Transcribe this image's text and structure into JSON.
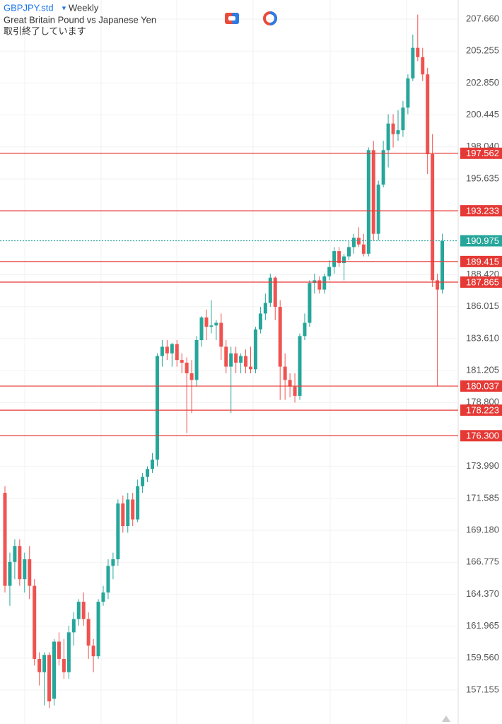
{
  "header": {
    "symbol": "GBPJPY.std",
    "timeframe": "Weekly",
    "description": "Great Britain Pound vs Japanese Yen",
    "status": "取引終了しています"
  },
  "chart_data": {
    "type": "candlestick",
    "up_color": "#26a69a",
    "down_color": "#ef5350",
    "grid": true,
    "ylim": [
      154.6,
      209.1
    ],
    "yticks": [
      {
        "value": 207.66,
        "label": "207.660"
      },
      {
        "value": 205.255,
        "label": "205.255"
      },
      {
        "value": 202.85,
        "label": "202.850"
      },
      {
        "value": 200.445,
        "label": "200.445"
      },
      {
        "value": 198.04,
        "label": "198.040"
      },
      {
        "value": 195.635,
        "label": "195.635"
      },
      {
        "value": 188.42,
        "label": "188.420"
      },
      {
        "value": 186.015,
        "label": "186.015"
      },
      {
        "value": 183.61,
        "label": "183.610"
      },
      {
        "value": 181.205,
        "label": "181.205"
      },
      {
        "value": 178.8,
        "label": "178.800"
      },
      {
        "value": 173.99,
        "label": "173.990"
      },
      {
        "value": 171.585,
        "label": "171.585"
      },
      {
        "value": 169.18,
        "label": "169.180"
      },
      {
        "value": 166.775,
        "label": "166.775"
      },
      {
        "value": 164.37,
        "label": "164.370"
      },
      {
        "value": 161.965,
        "label": "161.965"
      },
      {
        "value": 159.56,
        "label": "159.560"
      },
      {
        "value": 157.155,
        "label": "157.155"
      }
    ],
    "levels": {
      "color": "#e53935",
      "items": [
        {
          "value": 197.562,
          "label": "197.562"
        },
        {
          "value": 193.233,
          "label": "193.233"
        },
        {
          "value": 189.415,
          "label": "189.415"
        },
        {
          "value": 187.865,
          "label": "187.865"
        },
        {
          "value": 180.037,
          "label": "180.037"
        },
        {
          "value": 178.223,
          "label": "178.223"
        },
        {
          "value": 176.3,
          "label": "176.300"
        }
      ]
    },
    "current_price": {
      "value": 190.975,
      "label": "190.975",
      "color": "#26a69a"
    },
    "open": [
      172,
      165,
      166.8,
      168,
      165.5,
      167,
      165,
      159.5,
      158.5,
      159.8,
      156.5,
      160.8,
      159.5,
      158.5,
      161.5,
      162.5,
      163.8,
      162.5,
      160.5,
      159.7,
      163.8,
      164.5,
      166.5,
      167,
      171.2,
      169.5,
      171.5,
      170,
      172.5,
      173.2,
      173.8,
      174.5,
      182.3,
      183,
      182.5,
      183.2,
      182,
      181.8,
      181,
      180.5,
      183.5,
      185.2,
      184.5,
      184.6,
      184.8,
      183,
      181.5,
      182.5,
      181.8,
      182.3,
      181.5,
      181.3,
      184.3,
      185.5,
      186.3,
      188.2,
      186,
      181.5,
      180.5,
      180,
      179.3,
      183.8,
      184.8,
      187.8,
      188,
      187.3,
      188.3,
      189,
      190.2,
      189.3,
      189.8,
      190.5,
      191.2,
      190.7,
      190,
      197.8,
      191.5,
      195.2,
      197.8,
      199.8,
      199,
      199.3,
      201,
      203.2,
      205.5,
      204.8,
      203.5,
      197.5,
      188,
      187.3
    ],
    "high": [
      172.5,
      167.5,
      168.5,
      168.5,
      167.5,
      168,
      165.5,
      160,
      160,
      160,
      161,
      161.5,
      161,
      162,
      163,
      164,
      164.5,
      163,
      161,
      164,
      165,
      167,
      167.5,
      171.5,
      171.8,
      172,
      172,
      173,
      173.5,
      174,
      175,
      182.5,
      183.5,
      183.5,
      183.3,
      183.5,
      182.5,
      182.2,
      182,
      183.8,
      185.3,
      185.8,
      186.5,
      185,
      185.5,
      183.5,
      183,
      183,
      182.5,
      182.8,
      183,
      184.5,
      186,
      187,
      188.5,
      188.3,
      186.5,
      182.5,
      181,
      181,
      184,
      185.5,
      188,
      188.5,
      188.3,
      188.5,
      189.5,
      190.5,
      190.5,
      190,
      191,
      191.5,
      192,
      191.5,
      198,
      198.5,
      195.5,
      198.5,
      200.5,
      200.5,
      200.8,
      201.5,
      203.5,
      206.5,
      208,
      205.5,
      204,
      199,
      188.5,
      191.5
    ],
    "low": [
      164.5,
      163.5,
      165.5,
      165,
      164.5,
      164,
      159,
      157.5,
      156,
      155.8,
      156,
      159,
      158,
      158,
      160.5,
      162,
      162,
      159.5,
      158.5,
      159.5,
      163.5,
      164,
      165.5,
      166.5,
      169,
      169,
      169.5,
      169.8,
      172,
      172.8,
      173.5,
      174,
      181.5,
      182,
      181.5,
      181.5,
      181,
      176.5,
      178,
      180,
      183,
      183.5,
      184,
      183.5,
      182,
      181,
      178,
      181,
      181,
      181,
      181,
      181,
      184,
      185,
      186,
      185,
      179,
      179,
      179.2,
      178.8,
      179,
      183.5,
      184.5,
      187,
      187,
      187,
      188,
      188.5,
      189,
      188,
      189.5,
      190,
      190.5,
      189.8,
      189.8,
      191,
      191,
      195,
      196.5,
      198,
      198.5,
      198.8,
      200.5,
      203,
      204.5,
      203,
      196,
      187.5,
      180,
      187
    ],
    "close": [
      165,
      166.8,
      168,
      165.5,
      167,
      165,
      159.5,
      158.5,
      159.8,
      156.3,
      160.8,
      159.5,
      158.5,
      161.5,
      162.5,
      163.8,
      162.5,
      160.5,
      159.7,
      163.8,
      164.5,
      166.5,
      167,
      171.2,
      169.5,
      171.5,
      170,
      172.5,
      173.2,
      173.8,
      174.5,
      182.3,
      183,
      182.5,
      183.2,
      182,
      181.8,
      181,
      180.5,
      183.5,
      185.2,
      184.5,
      184.6,
      184.8,
      183,
      181.5,
      182.5,
      181.8,
      182.3,
      181.5,
      181.3,
      184.3,
      185.5,
      186.3,
      188.2,
      186,
      181.5,
      180.5,
      180,
      179.3,
      183.8,
      184.8,
      187.8,
      188,
      187.3,
      188.3,
      189,
      190.2,
      189.3,
      189.8,
      190.5,
      191.2,
      190.7,
      190,
      197.8,
      191.5,
      195.2,
      197.8,
      199.8,
      199,
      199.3,
      201,
      203.2,
      205.5,
      204.8,
      203.5,
      197.5,
      188,
      187.3,
      190.975
    ]
  }
}
